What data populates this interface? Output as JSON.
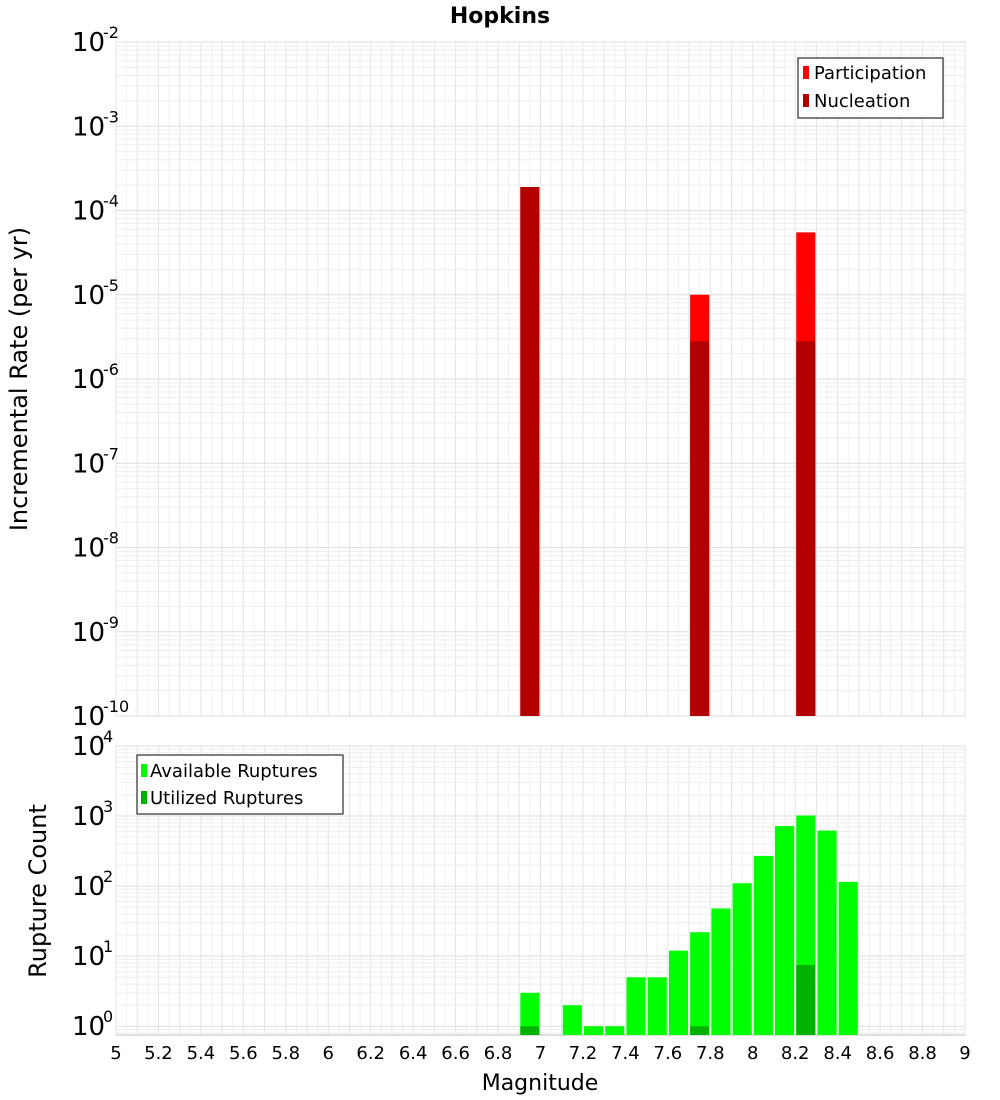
{
  "chart_data": [
    {
      "type": "bar",
      "panel": "top",
      "title": "Hopkins",
      "xlabel": "",
      "ylabel": "Incremental Rate (per yr)",
      "yscale": "log",
      "ylim": [
        1e-10,
        0.01
      ],
      "xlim": [
        5,
        9
      ],
      "ytick_exponents": [
        "-10",
        "-9",
        "-8",
        "-7",
        "-6",
        "-5",
        "-4",
        "-3",
        "-2"
      ],
      "ytick_base": "10",
      "legend_placement": "top-right",
      "bar_width": 0.09,
      "series": [
        {
          "name": "Participation",
          "color": "#ff0000",
          "points": [
            {
              "x": 6.95,
              "y": 0.00019
            },
            {
              "x": 7.75,
              "y": 1e-05
            },
            {
              "x": 8.25,
              "y": 5.5e-05
            }
          ]
        },
        {
          "name": "Nucleation",
          "color": "#b20000",
          "points": [
            {
              "x": 6.95,
              "y": 0.00019
            },
            {
              "x": 7.75,
              "y": 2.8e-06
            },
            {
              "x": 8.25,
              "y": 2.8e-06
            }
          ]
        }
      ]
    },
    {
      "type": "bar",
      "panel": "bottom",
      "title": "",
      "xlabel": "Magnitude",
      "ylabel": "Rupture Count",
      "yscale": "log",
      "ylim": [
        0.75,
        10000
      ],
      "xlim": [
        5,
        9
      ],
      "ytick_exponents": [
        "0",
        "1",
        "2",
        "3",
        "4"
      ],
      "ytick_base": "10",
      "xticks": [
        "5",
        "5.2",
        "5.4",
        "5.6",
        "5.8",
        "6",
        "6.2",
        "6.4",
        "6.6",
        "6.8",
        "7",
        "7.2",
        "7.4",
        "7.6",
        "7.8",
        "8",
        "8.2",
        "8.4",
        "8.6",
        "8.8",
        "9"
      ],
      "legend_placement": "top-left",
      "bar_width": 0.09,
      "series": [
        {
          "name": "Available Ruptures",
          "color": "#00ff00",
          "points": [
            {
              "x": 6.95,
              "y": 3
            },
            {
              "x": 7.15,
              "y": 2
            },
            {
              "x": 7.25,
              "y": 1
            },
            {
              "x": 7.35,
              "y": 1
            },
            {
              "x": 7.45,
              "y": 5
            },
            {
              "x": 7.55,
              "y": 5
            },
            {
              "x": 7.65,
              "y": 12
            },
            {
              "x": 7.75,
              "y": 22
            },
            {
              "x": 7.85,
              "y": 48
            },
            {
              "x": 7.95,
              "y": 110
            },
            {
              "x": 8.05,
              "y": 270
            },
            {
              "x": 8.15,
              "y": 720
            },
            {
              "x": 8.25,
              "y": 1020
            },
            {
              "x": 8.35,
              "y": 620
            },
            {
              "x": 8.45,
              "y": 115
            }
          ]
        },
        {
          "name": "Utilized Ruptures",
          "color": "#00b200",
          "points": [
            {
              "x": 6.95,
              "y": 1
            },
            {
              "x": 7.75,
              "y": 1
            },
            {
              "x": 8.25,
              "y": 7.5
            }
          ]
        }
      ]
    }
  ]
}
